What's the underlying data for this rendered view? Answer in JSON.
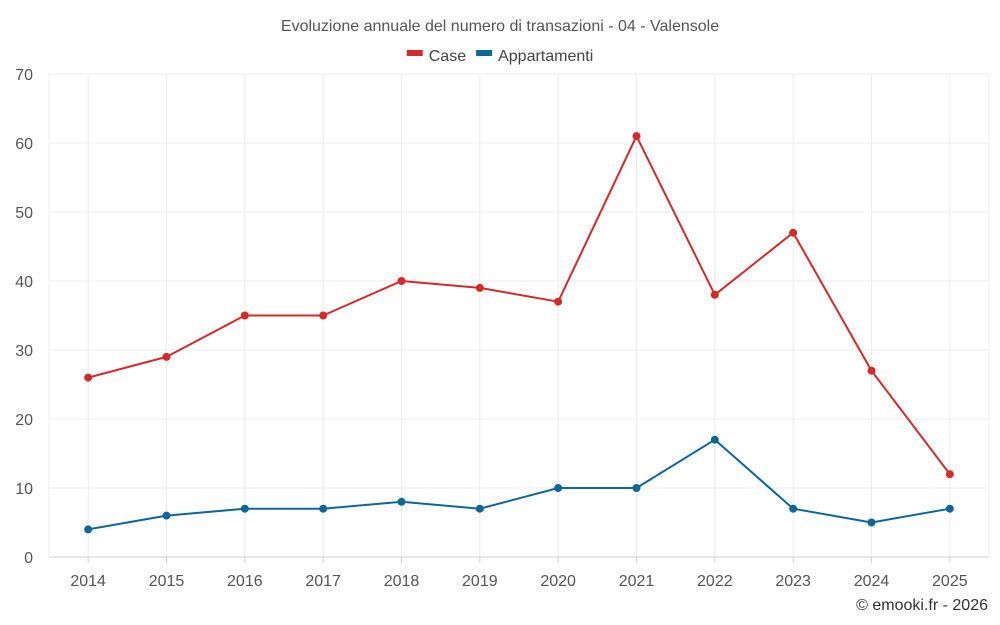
{
  "chart_data": {
    "type": "line",
    "title": "Evoluzione annuale del numero di transazioni - 04 - Valensole",
    "categories": [
      "2014",
      "2015",
      "2016",
      "2017",
      "2018",
      "2019",
      "2020",
      "2021",
      "2022",
      "2023",
      "2024",
      "2025"
    ],
    "series": [
      {
        "name": "Case",
        "color": "#d42a2a",
        "values": [
          26,
          29,
          35,
          35,
          40,
          39,
          37,
          61,
          38,
          47,
          27,
          12
        ]
      },
      {
        "name": "Appartamenti",
        "color": "#0e6699",
        "values": [
          4,
          6,
          7,
          7,
          8,
          7,
          10,
          10,
          17,
          7,
          5,
          7
        ]
      }
    ],
    "ylim": [
      0,
      70
    ],
    "yticks": [
      0,
      10,
      20,
      30,
      40,
      50,
      60,
      70
    ],
    "xlabel": "",
    "ylabel": "",
    "grid": true,
    "legend_position": "top-center"
  },
  "credit": "© emooki.fr - 2026"
}
